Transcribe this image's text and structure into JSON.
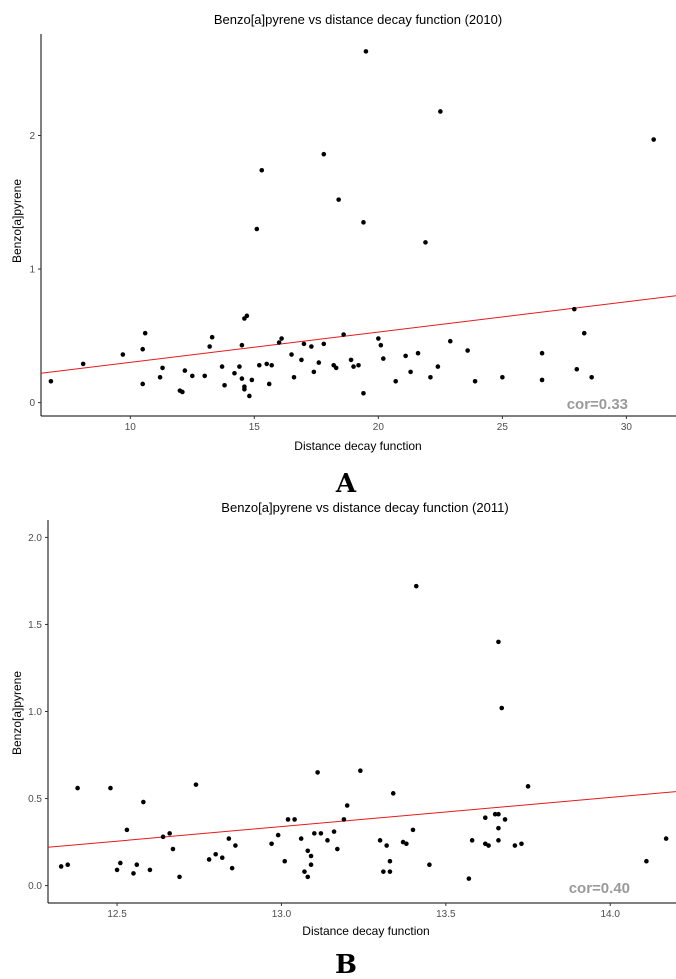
{
  "chart_data": [
    {
      "type": "scatter",
      "panel_label": "A",
      "title": "Benzo[a]pyrene vs distance decay function (2010)",
      "xlabel": "Distance decay function",
      "ylabel": "Benzo[a]pyrene",
      "xlim": [
        6.4,
        32.0
      ],
      "ylim": [
        -0.1,
        2.76
      ],
      "xticks": [
        10,
        15,
        20,
        25,
        30
      ],
      "xtick_labels": [
        "10",
        "15",
        "20",
        "25",
        "30"
      ],
      "yticks": [
        0,
        1,
        2
      ],
      "ytick_labels": [
        "0",
        "1",
        "2"
      ],
      "annotation": "cor=0.33",
      "fit_line": {
        "x": [
          6.4,
          32.0
        ],
        "y": [
          0.22,
          0.8
        ],
        "color": "#e41a1c"
      },
      "grid": false,
      "x": [
        6.8,
        8.1,
        9.7,
        10.5,
        10.6,
        10.5,
        11.2,
        11.3,
        12.0,
        12.1,
        12.2,
        12.5,
        13.0,
        13.2,
        13.3,
        13.7,
        13.8,
        14.2,
        14.4,
        14.5,
        14.5,
        14.6,
        14.6,
        14.6,
        14.7,
        14.8,
        14.9,
        15.1,
        15.2,
        15.5,
        15.6,
        15.7,
        16.0,
        16.1,
        16.5,
        16.6,
        16.9,
        17.0,
        17.3,
        17.4,
        17.6,
        17.8,
        18.2,
        18.3,
        18.4,
        18.6,
        18.9,
        19.0,
        19.2,
        19.4,
        19.5,
        20.0,
        20.1,
        20.2,
        20.7,
        21.1,
        21.3,
        21.6,
        21.9,
        22.1,
        22.4,
        22.5,
        22.9,
        23.6,
        23.9,
        25.0,
        26.6,
        26.6,
        27.9,
        28.0,
        28.3,
        28.6,
        31.1,
        15.3,
        17.8,
        19.4
      ],
      "y": [
        0.16,
        0.29,
        0.36,
        0.4,
        0.52,
        0.14,
        0.19,
        0.26,
        0.09,
        0.08,
        0.24,
        0.2,
        0.2,
        0.42,
        0.49,
        0.27,
        0.13,
        0.22,
        0.27,
        0.43,
        0.18,
        0.12,
        0.1,
        0.63,
        0.65,
        0.05,
        0.17,
        1.3,
        0.28,
        0.29,
        0.14,
        0.28,
        0.45,
        0.48,
        0.36,
        0.19,
        0.32,
        0.44,
        0.42,
        0.23,
        0.3,
        1.86,
        0.28,
        0.26,
        1.52,
        0.51,
        0.32,
        0.27,
        0.28,
        1.35,
        2.63,
        0.48,
        0.43,
        0.33,
        0.16,
        0.35,
        0.23,
        0.37,
        1.2,
        0.19,
        0.27,
        2.18,
        0.46,
        0.39,
        0.16,
        0.19,
        0.37,
        0.17,
        0.7,
        0.25,
        0.52,
        0.19,
        1.97,
        1.74,
        0.44,
        0.07
      ]
    },
    {
      "type": "scatter",
      "panel_label": "B",
      "title": "Benzo[a]pyrene vs distance decay function (2011)",
      "xlabel": "Distance decay function",
      "ylabel": "Benzo[a]pyrene",
      "xlim": [
        12.29,
        14.2
      ],
      "ylim": [
        -0.1,
        2.1
      ],
      "xticks": [
        12.5,
        13.0,
        13.5,
        14.0
      ],
      "xtick_labels": [
        "12.5",
        "13.0",
        "13.5",
        "14.0"
      ],
      "yticks": [
        0.0,
        0.5,
        1.0,
        1.5,
        2.0
      ],
      "ytick_labels": [
        "0.0",
        "0.5",
        "1.0",
        "1.5",
        "2.0"
      ],
      "annotation": "cor=0.40",
      "fit_line": {
        "x": [
          12.29,
          14.2
        ],
        "y": [
          0.22,
          0.54
        ],
        "color": "#e41a1c"
      },
      "grid": false,
      "x": [
        12.33,
        12.35,
        12.38,
        12.48,
        12.5,
        12.51,
        12.53,
        12.55,
        12.56,
        12.58,
        12.6,
        12.64,
        12.66,
        12.67,
        12.69,
        12.74,
        12.78,
        12.8,
        12.82,
        12.84,
        12.85,
        12.86,
        12.97,
        12.99,
        13.01,
        13.02,
        13.04,
        13.06,
        13.07,
        13.08,
        13.08,
        13.09,
        13.09,
        13.1,
        13.11,
        13.12,
        13.14,
        13.16,
        13.17,
        13.19,
        13.2,
        13.24,
        13.3,
        13.31,
        13.32,
        13.33,
        13.33,
        13.34,
        13.37,
        13.38,
        13.4,
        13.41,
        13.45,
        13.57,
        13.58,
        13.62,
        13.63,
        13.65,
        13.66,
        13.66,
        13.67,
        13.68,
        13.71,
        13.73,
        13.75,
        14.11,
        14.17,
        13.66,
        13.66,
        13.62
      ],
      "y": [
        0.11,
        0.12,
        0.56,
        0.56,
        0.09,
        0.13,
        0.32,
        0.07,
        0.12,
        0.48,
        0.09,
        0.28,
        0.3,
        0.21,
        0.05,
        0.58,
        0.15,
        0.18,
        0.16,
        0.27,
        0.1,
        0.23,
        0.24,
        0.29,
        0.14,
        0.38,
        0.38,
        0.27,
        0.08,
        0.05,
        0.2,
        0.12,
        0.17,
        0.3,
        0.65,
        0.3,
        0.26,
        0.31,
        0.21,
        0.38,
        0.46,
        0.66,
        0.26,
        0.08,
        0.23,
        0.14,
        0.08,
        0.53,
        0.25,
        0.24,
        0.32,
        1.72,
        0.12,
        0.04,
        0.26,
        0.39,
        0.23,
        0.41,
        0.41,
        1.4,
        1.02,
        0.38,
        0.23,
        0.24,
        0.57,
        0.14,
        0.27,
        0.33,
        0.26,
        0.24
      ]
    }
  ]
}
